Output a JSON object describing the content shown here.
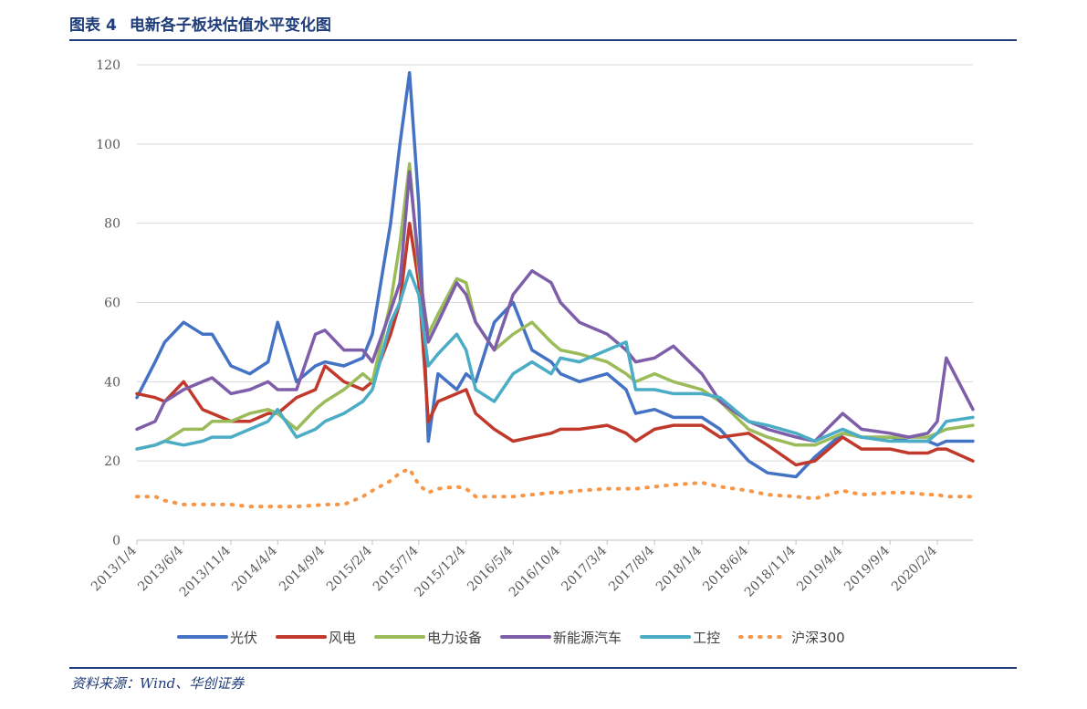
{
  "title": {
    "prefix": "图表",
    "number": "4",
    "text": "电新各子板块估值水平变化图"
  },
  "source": "资料来源：Wind、华创证券",
  "chart_data": {
    "type": "line",
    "title": "电新各子板块估值水平变化图",
    "xlabel": "",
    "ylabel": "",
    "ylim": [
      0,
      120
    ],
    "yticks": [
      0,
      20,
      40,
      60,
      80,
      100,
      120
    ],
    "grid": true,
    "legend_position": "bottom",
    "x_range": [
      "2013/1/4",
      "2020/5/29"
    ],
    "x_ticks": [
      "2013/1/4",
      "2013/6/4",
      "2013/11/4",
      "2014/4/4",
      "2014/9/4",
      "2015/2/4",
      "2015/7/4",
      "2015/12/4",
      "2016/5/4",
      "2016/10/4",
      "2017/3/4",
      "2017/8/4",
      "2018/1/4",
      "2018/6/4",
      "2018/11/4",
      "2019/4/4",
      "2019/9/4",
      "2020/2/4"
    ],
    "x": [
      "2013/1/4",
      "2013/3/4",
      "2013/4/4",
      "2013/6/4",
      "2013/8/4",
      "2013/9/4",
      "2013/11/4",
      "2014/1/4",
      "2014/3/4",
      "2014/4/4",
      "2014/6/4",
      "2014/8/4",
      "2014/9/4",
      "2014/11/4",
      "2015/1/4",
      "2015/2/4",
      "2015/4/4",
      "2015/5/4",
      "2015/6/4",
      "2015/7/4",
      "2015/8/4",
      "2015/9/4",
      "2015/11/4",
      "2015/12/4",
      "2016/1/4",
      "2016/3/4",
      "2016/5/4",
      "2016/7/4",
      "2016/9/4",
      "2016/10/4",
      "2016/12/4",
      "2017/3/4",
      "2017/5/4",
      "2017/6/4",
      "2017/8/4",
      "2017/10/4",
      "2018/1/4",
      "2018/3/4",
      "2018/6/4",
      "2018/8/4",
      "2018/11/4",
      "2019/1/4",
      "2019/4/4",
      "2019/6/4",
      "2019/9/4",
      "2019/11/4",
      "2020/1/4",
      "2020/2/4",
      "2020/3/4",
      "2020/5/29"
    ],
    "series": [
      {
        "name": "光伏",
        "color": "#4472c4",
        "values": [
          36,
          45,
          50,
          55,
          52,
          52,
          44,
          42,
          45,
          55,
          40,
          44,
          45,
          44,
          46,
          52,
          80,
          100,
          118,
          85,
          25,
          42,
          38,
          42,
          40,
          55,
          60,
          48,
          45,
          42,
          40,
          42,
          38,
          32,
          33,
          31,
          31,
          28,
          20,
          17,
          16,
          21,
          27,
          26,
          26,
          25,
          25,
          24,
          25,
          25
        ]
      },
      {
        "name": "风电",
        "color": "#c0392b",
        "values": [
          37,
          36,
          35,
          40,
          33,
          32,
          30,
          30,
          32,
          32,
          36,
          38,
          44,
          40,
          38,
          40,
          52,
          60,
          80,
          65,
          30,
          35,
          37,
          38,
          32,
          28,
          25,
          26,
          27,
          28,
          28,
          29,
          27,
          25,
          28,
          29,
          29,
          26,
          27,
          24,
          19,
          20,
          26,
          23,
          23,
          22,
          22,
          23,
          23,
          20
        ]
      },
      {
        "name": "电力设备",
        "color": "#9bbb59",
        "values": [
          23,
          24,
          25,
          28,
          28,
          30,
          30,
          32,
          33,
          32,
          28,
          33,
          35,
          38,
          42,
          40,
          60,
          75,
          95,
          68,
          52,
          57,
          66,
          65,
          55,
          48,
          52,
          55,
          50,
          48,
          47,
          45,
          42,
          40,
          42,
          40,
          38,
          35,
          28,
          26,
          24,
          24,
          27,
          26,
          26,
          26,
          26,
          27,
          28,
          29
        ]
      },
      {
        "name": "新能源汽车",
        "color": "#7f5ea9",
        "values": [
          28,
          30,
          35,
          38,
          40,
          41,
          37,
          38,
          40,
          38,
          38,
          52,
          53,
          48,
          48,
          45,
          58,
          65,
          93,
          70,
          50,
          55,
          65,
          62,
          55,
          48,
          62,
          68,
          65,
          60,
          55,
          52,
          48,
          45,
          46,
          49,
          42,
          35,
          30,
          28,
          26,
          25,
          32,
          28,
          27,
          26,
          27,
          30,
          46,
          33
        ]
      },
      {
        "name": "工控",
        "color": "#4bacc6",
        "values": [
          23,
          24,
          25,
          24,
          25,
          26,
          26,
          28,
          30,
          33,
          26,
          28,
          30,
          32,
          35,
          38,
          55,
          60,
          68,
          62,
          44,
          47,
          52,
          48,
          38,
          35,
          42,
          45,
          42,
          46,
          45,
          48,
          50,
          38,
          38,
          37,
          37,
          36,
          30,
          29,
          27,
          25,
          28,
          26,
          25,
          25,
          25,
          27,
          30,
          31
        ]
      },
      {
        "name": "沪深300",
        "color": "#f79646",
        "dashed": true,
        "values": [
          11,
          11,
          10,
          9,
          9,
          9,
          9,
          8.5,
          8.5,
          8.5,
          8.5,
          8.8,
          9,
          9,
          11,
          12.5,
          15,
          17,
          18,
          14,
          12,
          13,
          13.5,
          13,
          11,
          11,
          11,
          11.5,
          12,
          12,
          12.5,
          13,
          13,
          13,
          13.5,
          14,
          14.5,
          13.5,
          12.5,
          11.5,
          11,
          10.5,
          12.5,
          11.5,
          12,
          12,
          11.5,
          11.5,
          11,
          11
        ]
      }
    ]
  }
}
